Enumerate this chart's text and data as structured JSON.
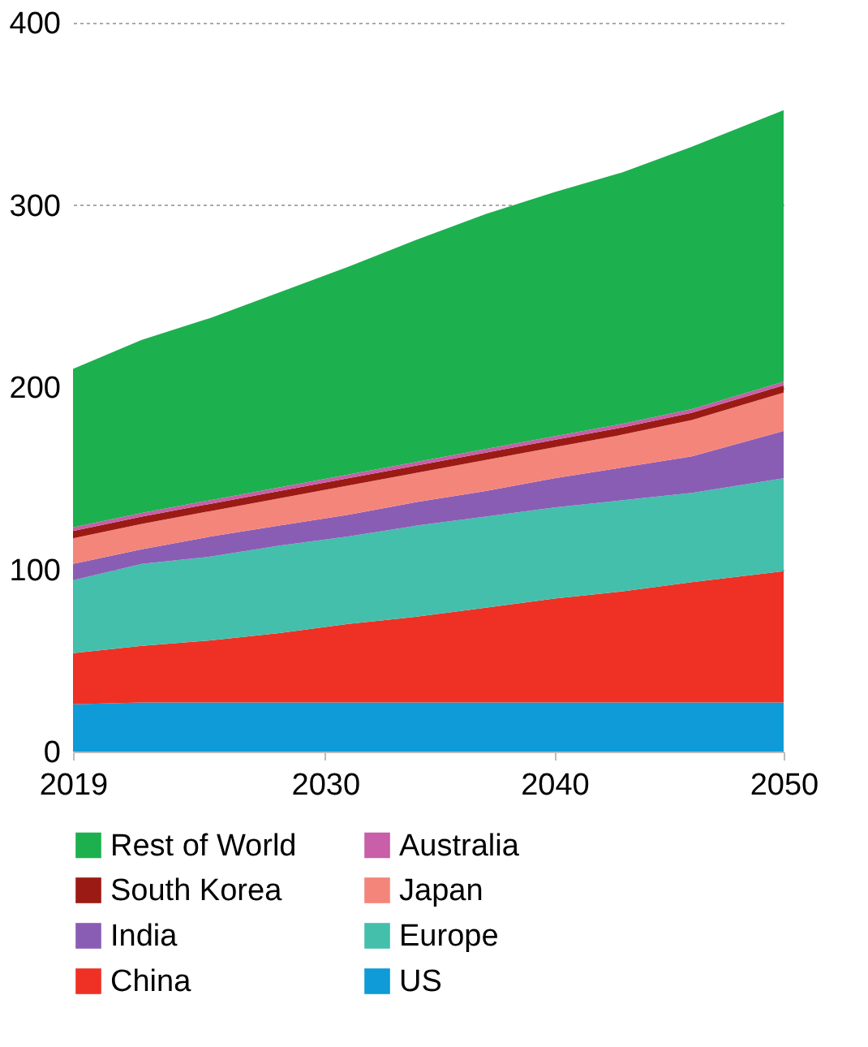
{
  "chart_data": {
    "type": "area",
    "stacked": true,
    "x": [
      2019,
      2022,
      2025,
      2028,
      2031,
      2034,
      2037,
      2040,
      2043,
      2046,
      2050
    ],
    "series": [
      {
        "name": "US",
        "color": "#0f9bd7",
        "values": [
          26,
          27,
          27,
          27,
          27,
          27,
          27,
          27,
          27,
          27,
          27
        ]
      },
      {
        "name": "China",
        "color": "#ee3124",
        "values": [
          28,
          31,
          34,
          38,
          43,
          47,
          52,
          57,
          61,
          66,
          72
        ]
      },
      {
        "name": "Europe",
        "color": "#43bfac",
        "values": [
          40,
          45,
          46,
          48,
          48,
          50,
          50,
          50,
          50,
          49,
          51
        ]
      },
      {
        "name": "India",
        "color": "#8a5db5",
        "values": [
          9,
          8,
          11,
          11,
          12,
          13,
          14,
          16,
          18,
          20,
          26
        ]
      },
      {
        "name": "Japan",
        "color": "#f4857a",
        "values": [
          14,
          14,
          14,
          15,
          16,
          16,
          17,
          17,
          18,
          20,
          21
        ]
      },
      {
        "name": "South Korea",
        "color": "#9b1b14",
        "values": [
          4,
          4,
          4,
          4,
          4,
          4,
          4,
          4,
          4,
          4,
          4
        ]
      },
      {
        "name": "Australia",
        "color": "#c85fa8",
        "values": [
          2,
          2,
          2,
          2,
          2,
          2,
          2,
          2,
          2,
          2,
          2
        ]
      },
      {
        "name": "Rest of World",
        "color": "#1db04f",
        "values": [
          87,
          95,
          100,
          107,
          114,
          122,
          129,
          134,
          138,
          144,
          149
        ]
      }
    ],
    "xlim": [
      2019,
      2050
    ],
    "xticks": [
      2019,
      2030,
      2040,
      2050
    ],
    "ylim": [
      0,
      400
    ],
    "yticks": [
      0,
      100,
      200,
      300,
      400
    ],
    "grid": "y",
    "legend": "bottom"
  }
}
